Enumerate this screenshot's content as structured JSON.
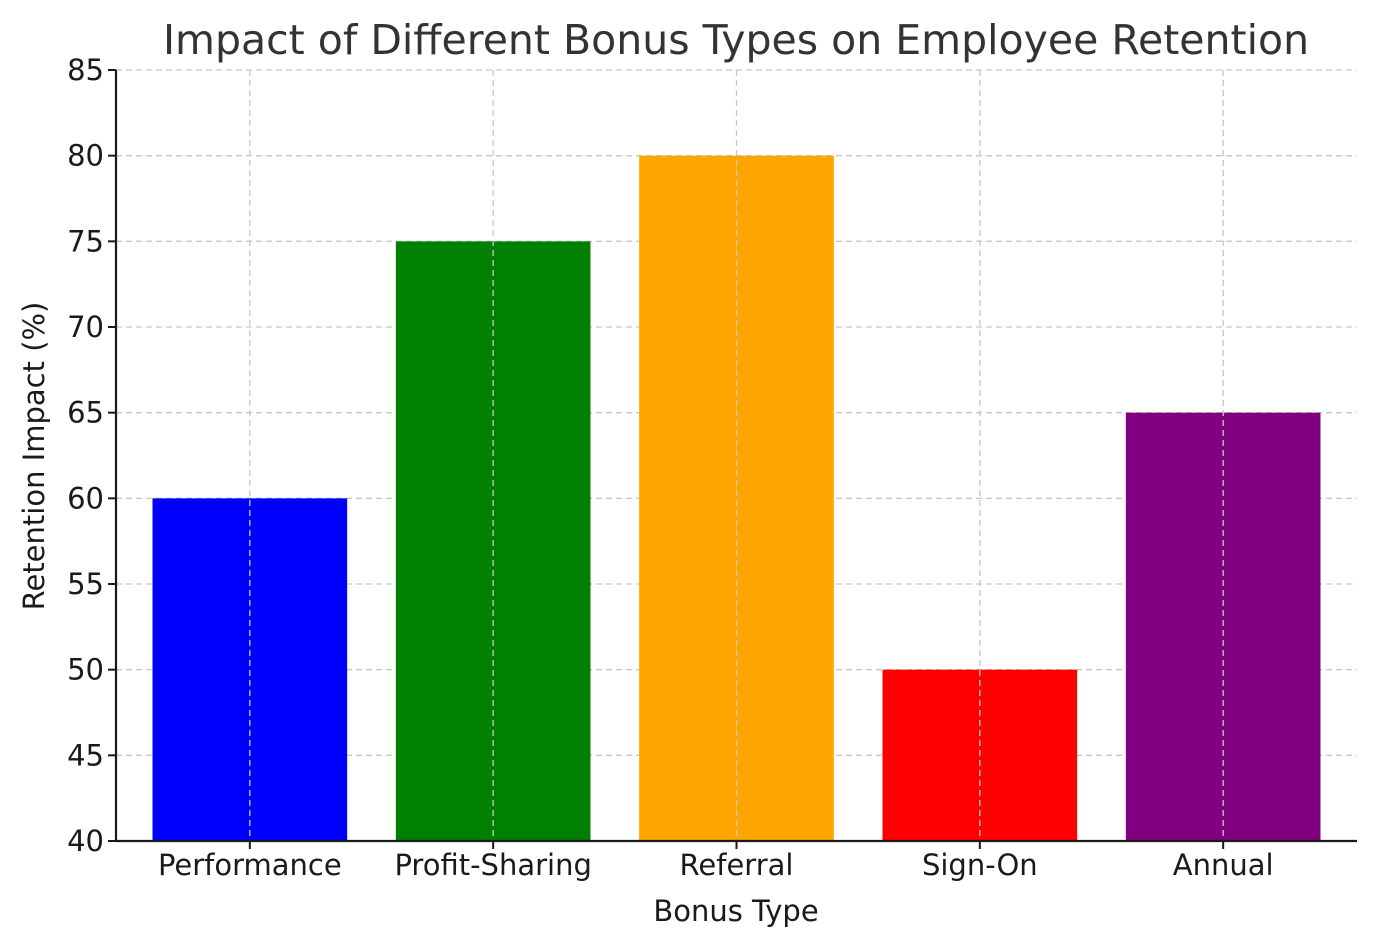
{
  "chart_data": {
    "type": "bar",
    "title": "Impact of Different Bonus Types on Employee Retention",
    "xlabel": "Bonus Type",
    "ylabel": "Retention Impact (%)",
    "categories": [
      "Performance",
      "Profit-Sharing",
      "Referral",
      "Sign-On",
      "Annual"
    ],
    "values": [
      60,
      75,
      80,
      50,
      65
    ],
    "colors": [
      "#0000ff",
      "#008000",
      "#ffa500",
      "#ff0000",
      "#800080"
    ],
    "ylim": [
      40,
      85
    ],
    "yticks": [
      40,
      45,
      50,
      55,
      60,
      65,
      70,
      75,
      80,
      85
    ],
    "grid": true,
    "legend": "none"
  }
}
